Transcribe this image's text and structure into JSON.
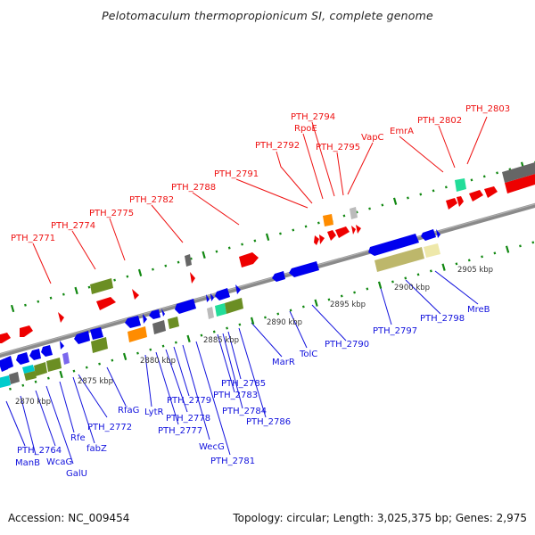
{
  "title": "Pelotomaculum thermopropionicum SI, complete genome",
  "footer": {
    "accession": "Accession: NC_009454",
    "summary": "Topology: circular; Length: 3,025,375 bp; Genes: 2,975"
  },
  "colors": {
    "forward_label": "#ee1111",
    "reverse_label": "#1111dd",
    "backbone": "#888888",
    "tick": "#118811",
    "cog_blue": "#0000ee",
    "cog_red": "#ee0000",
    "cog_olive": "#6b8e23",
    "cog_orange": "#ff8c00",
    "cog_gray": "#606060",
    "cog_lightgray": "#bbbbbb",
    "cog_cyan": "#00cccc",
    "cog_mint": "#22ddaa",
    "cog_khaki": "#bdb76b",
    "cog_paleyellow": "#eee8aa",
    "cog_lavender": "#7b68ee"
  },
  "scale_labels": [
    {
      "label": "2870 kbp",
      "kbp": 2870
    },
    {
      "label": "2875 kbp",
      "kbp": 2875
    },
    {
      "label": "2880 kbp",
      "kbp": 2880
    },
    {
      "label": "2885 kbp",
      "kbp": 2885
    },
    {
      "label": "2890 kbp",
      "kbp": 2890
    },
    {
      "label": "2895 kbp",
      "kbp": 2895
    },
    {
      "label": "2900 kbp",
      "kbp": 2900
    },
    {
      "label": "2905 kbp",
      "kbp": 2905
    }
  ],
  "forward_genes": [
    {
      "label": "PTH_2771"
    },
    {
      "label": "PTH_2774"
    },
    {
      "label": "PTH_2775"
    },
    {
      "label": "PTH_2782"
    },
    {
      "label": "PTH_2788"
    },
    {
      "label": "PTH_2791"
    },
    {
      "label": "PTH_2792"
    },
    {
      "label": "PTH_2794"
    },
    {
      "label": "RpoE"
    },
    {
      "label": "PTH_2795"
    },
    {
      "label": "VapC"
    },
    {
      "label": "EmrA"
    },
    {
      "label": "PTH_2802"
    },
    {
      "label": "PTH_2803"
    }
  ],
  "reverse_genes": [
    {
      "label": "PTH_2764"
    },
    {
      "label": "ManB"
    },
    {
      "label": "WcaG"
    },
    {
      "label": "GalU"
    },
    {
      "label": "Rfe"
    },
    {
      "label": "fabZ"
    },
    {
      "label": "PTH_2772"
    },
    {
      "label": "RfaG"
    },
    {
      "label": "LytR"
    },
    {
      "label": "PTH_2777"
    },
    {
      "label": "PTH_2778"
    },
    {
      "label": "PTH_2779"
    },
    {
      "label": "WecG"
    },
    {
      "label": "PTH_2781"
    },
    {
      "label": "PTH_2783"
    },
    {
      "label": "PTH_2784"
    },
    {
      "label": "PTH_2785"
    },
    {
      "label": "PTH_2786"
    },
    {
      "label": "MarR"
    },
    {
      "label": "TolC"
    },
    {
      "label": "PTH_2790"
    },
    {
      "label": "PTH_2797"
    },
    {
      "label": "PTH_2798"
    },
    {
      "label": "MreB"
    }
  ]
}
